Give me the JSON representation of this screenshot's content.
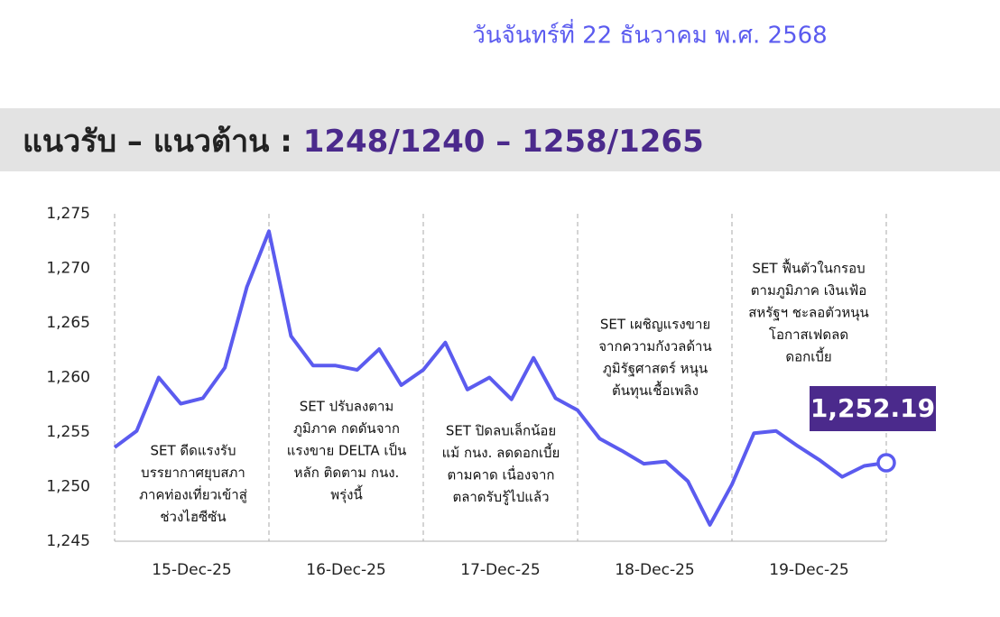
{
  "header": {
    "date": "วันจันทร์ที่ 22 ธันวาคม พ.ศ. 2568",
    "title_label": "แนวรับ – แนวต้าน : ",
    "title_levels": "1248/1240 – 1258/1265"
  },
  "chart_data": {
    "type": "line",
    "x_labels": [
      "15-Dec-25",
      "16-Dec-25",
      "17-Dec-25",
      "18-Dec-25",
      "19-Dec-25"
    ],
    "series": [
      {
        "name": "SET",
        "color": "#5b5bef",
        "values": [
          1253.6,
          1255.1,
          1260.0,
          1257.6,
          1258.1,
          1260.9,
          1268.3,
          1273.4,
          1263.8,
          1261.1,
          1261.1,
          1260.7,
          1262.6,
          1259.3,
          1260.7,
          1263.2,
          1258.9,
          1260.0,
          1258.0,
          1261.8,
          1258.1,
          1257.0,
          1254.4,
          1253.3,
          1252.1,
          1252.3,
          1250.5,
          1246.5,
          1250.2,
          1254.9,
          1255.1,
          1253.7,
          1252.4,
          1250.9,
          1251.9,
          1252.19
        ],
        "value_labels": [
          null,
          null,
          null,
          null,
          null,
          null,
          null,
          null,
          null,
          null,
          null,
          null,
          null,
          null,
          null,
          null,
          null,
          null,
          null,
          null,
          null,
          null,
          null,
          null,
          null,
          null,
          null,
          null,
          null,
          null,
          null,
          null,
          null,
          null,
          null,
          "1,252.19"
        ]
      }
    ],
    "ylim": [
      1245,
      1275
    ],
    "yticks": [
      {
        "value": 1245,
        "label": "1,245"
      },
      {
        "value": 1250,
        "label": "1,250"
      },
      {
        "value": 1255,
        "label": "1,255"
      },
      {
        "value": 1260,
        "label": "1,260"
      },
      {
        "value": 1265,
        "label": "1,265"
      },
      {
        "value": 1270,
        "label": "1,270"
      },
      {
        "value": 1275,
        "label": "1,275"
      }
    ],
    "annotations": [
      {
        "lines": [
          "SET ดีดแรงรับ",
          "บรรยากาศยุบสภา",
          "ภาคท่องเที่ยวเข้าสู่",
          "ช่วงไฮซีซัน"
        ]
      },
      {
        "lines": [
          "SET ปรับลงตาม",
          "ภูมิภาค กดดันจาก",
          "แรงขาย DELTA เป็น",
          "หลัก ติดตาม กนง.",
          "พรุ่งนี้"
        ]
      },
      {
        "lines": [
          "SET ปิดลบเล็กน้อย",
          "แม้ กนง. ลดดอกเบี้ย",
          "ตามคาด เนื่องจาก",
          "ตลาดรับรู้ไปแล้ว"
        ]
      },
      {
        "lines": [
          "SET เผชิญแรงขาย",
          "จากความกังวลด้าน",
          "ภูมิรัฐศาสตร์ หนุน",
          "ต้นทุนเชื้อเพลิง"
        ]
      },
      {
        "lines": [
          "SET ฟื้นตัวในกรอบ",
          "ตามภูมิภาค เงินเฟ้อ",
          "สหรัฐฯ ชะลอตัวหนุน",
          "โอกาสเฟดลด",
          "ดอกเบี้ย"
        ]
      }
    ]
  }
}
